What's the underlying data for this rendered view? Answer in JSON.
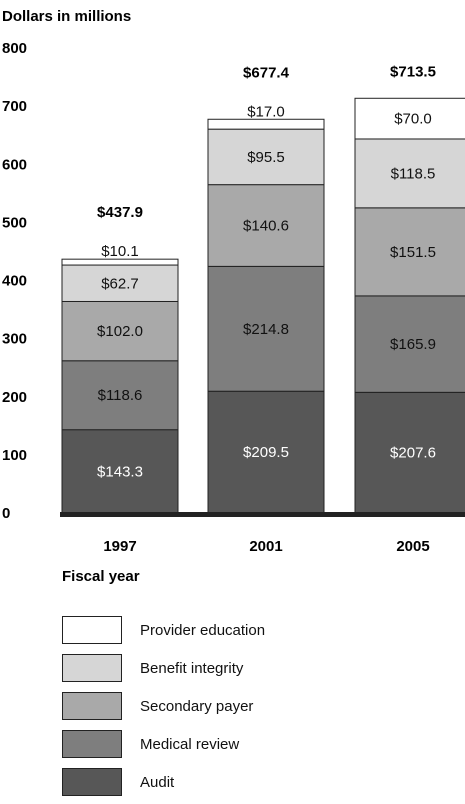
{
  "chart_data": {
    "type": "bar",
    "stacked": true,
    "ylabel": "Dollars in millions",
    "xlabel": "Fiscal year",
    "ylim": [
      0,
      800
    ],
    "yticks": [
      "0",
      "100",
      "200",
      "300",
      "400",
      "500",
      "600",
      "700",
      "800"
    ],
    "categories": [
      "1997",
      "2001",
      "2005"
    ],
    "totals": [
      "$437.9",
      "$677.4",
      "$713.5"
    ],
    "series": [
      {
        "name": "Audit",
        "color": "#575757",
        "text_color": "#ffffff",
        "values": [
          143.3,
          209.5,
          207.6
        ],
        "labels": [
          "$143.3",
          "$209.5",
          "$207.6"
        ]
      },
      {
        "name": "Medical review",
        "color": "#7e7e7e",
        "text_color": "#111111",
        "values": [
          118.6,
          214.8,
          165.9
        ],
        "labels": [
          "$118.6",
          "$214.8",
          "$165.9"
        ]
      },
      {
        "name": "Secondary payer",
        "color": "#a9a9a9",
        "text_color": "#111111",
        "values": [
          102.0,
          140.6,
          151.5
        ],
        "labels": [
          "$102.0",
          "$140.6",
          "$151.5"
        ]
      },
      {
        "name": "Benefit integrity",
        "color": "#d6d6d6",
        "text_color": "#111111",
        "values": [
          62.7,
          95.5,
          118.5
        ],
        "labels": [
          "$62.7",
          "$95.5",
          "$118.5"
        ]
      },
      {
        "name": "Provider education",
        "color": "#ffffff",
        "text_color": "#111111",
        "values": [
          10.1,
          17.0,
          70.0
        ],
        "labels": [
          "$10.1",
          "$17.0",
          "$70.0"
        ]
      }
    ]
  }
}
